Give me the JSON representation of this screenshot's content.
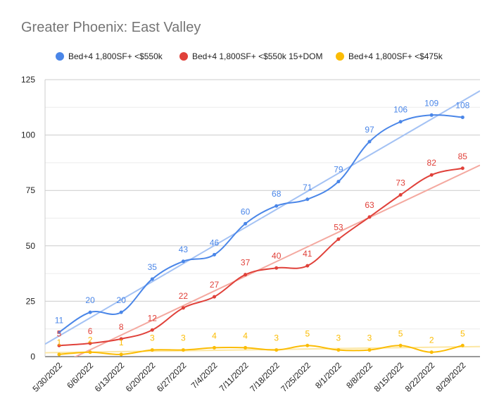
{
  "chart_data": {
    "type": "line",
    "title": "Greater Phoenix: East Valley",
    "xlabel": "",
    "ylabel": "",
    "categories": [
      "5/30/2022",
      "6/6/2022",
      "6/13/2022",
      "6/20/2022",
      "6/27/2022",
      "7/4/2022",
      "7/11/2022",
      "7/18/2022",
      "7/25/2022",
      "8/1/2022",
      "8/8/2022",
      "8/15/2022",
      "8/22/2022",
      "8/29/2022"
    ],
    "ylim": [
      0,
      125
    ],
    "yticks": [
      0,
      25,
      50,
      75,
      100,
      125
    ],
    "grid": true,
    "legend_position": "top",
    "trendlines": true,
    "series": [
      {
        "name": "Bed+4 1,800SF+ <$550k",
        "color": "#4a86e8",
        "trend_color": "#a4c2f4",
        "values": [
          11,
          20,
          20,
          35,
          43,
          46,
          60,
          68,
          71,
          79,
          97,
          106,
          109,
          108
        ]
      },
      {
        "name": "Bed+4 1,800SF+ <$550k 15+DOM",
        "color": "#e0413a",
        "trend_color": "#f4a9a0",
        "values": [
          5,
          6,
          8,
          12,
          22,
          27,
          37,
          40,
          41,
          53,
          63,
          73,
          82,
          85
        ]
      },
      {
        "name": "Bed+4 1,800SF+ <$475k",
        "color": "#fbbc04",
        "trend_color": "#fce7a3",
        "values": [
          1,
          2,
          1,
          3,
          3,
          4,
          4,
          3,
          5,
          3,
          3,
          5,
          2,
          5
        ]
      }
    ]
  }
}
